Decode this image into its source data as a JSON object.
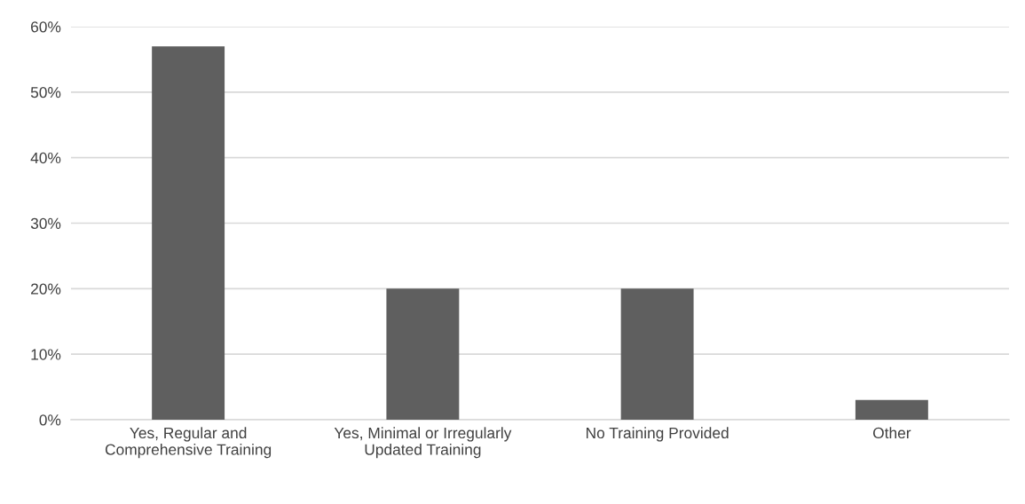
{
  "chart_data": {
    "type": "bar",
    "categories": [
      "Yes, Regular and Comprehensive Training",
      "Yes, Minimal or Irregularly Updated Training",
      "No Training Provided",
      "Other"
    ],
    "values": [
      57,
      20,
      20,
      3
    ],
    "color": "#5f5f5f",
    "ylim": [
      0,
      60
    ],
    "yticks": [
      {
        "value": 0,
        "label": "0%"
      },
      {
        "value": 10,
        "label": "10%"
      },
      {
        "value": 20,
        "label": "20%"
      },
      {
        "value": 30,
        "label": "30%"
      },
      {
        "value": 40,
        "label": "40%"
      },
      {
        "value": 50,
        "label": "50%"
      },
      {
        "value": 60,
        "label": "60%"
      }
    ],
    "grid": "y",
    "legend": false
  }
}
